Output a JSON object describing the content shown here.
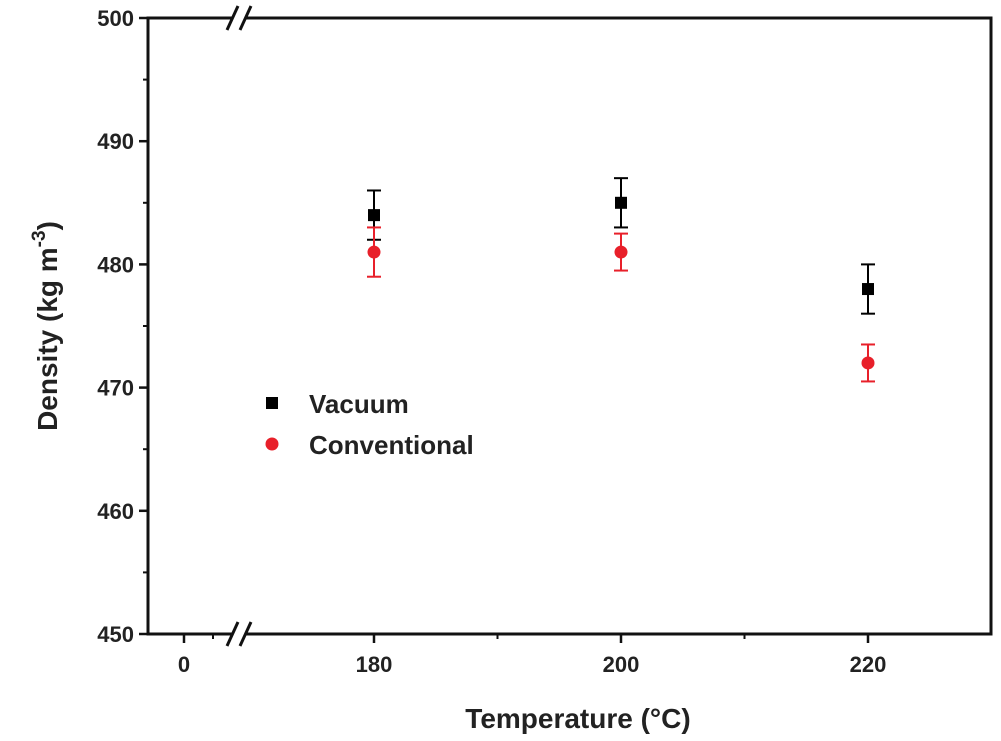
{
  "chart_data": {
    "type": "scatter",
    "title": "",
    "xlabel": "Temperature (°C)",
    "ylabel": "Density (kg m",
    "ylabel_superscript": "-3",
    "ylabel_close": ")",
    "ylim": [
      450,
      500
    ],
    "yticks": [
      "450",
      "460",
      "470",
      "480",
      "490",
      "500"
    ],
    "xticks": [
      "0",
      "180",
      "200",
      "220"
    ],
    "x_axis_break": true,
    "legend_position": "center-left",
    "series": [
      {
        "name": "Vacuum",
        "marker": "square",
        "color": "#000000",
        "points": [
          {
            "x": 180,
            "y": 484,
            "err": 2
          },
          {
            "x": 200,
            "y": 485,
            "err": 2
          },
          {
            "x": 220,
            "y": 478,
            "err": 2
          }
        ]
      },
      {
        "name": "Conventional",
        "marker": "circle",
        "color": "#e8202a",
        "points": [
          {
            "x": 180,
            "y": 481,
            "err": 2
          },
          {
            "x": 200,
            "y": 481,
            "err": 1.5
          },
          {
            "x": 220,
            "y": 472,
            "err": 1.5
          }
        ]
      }
    ]
  }
}
